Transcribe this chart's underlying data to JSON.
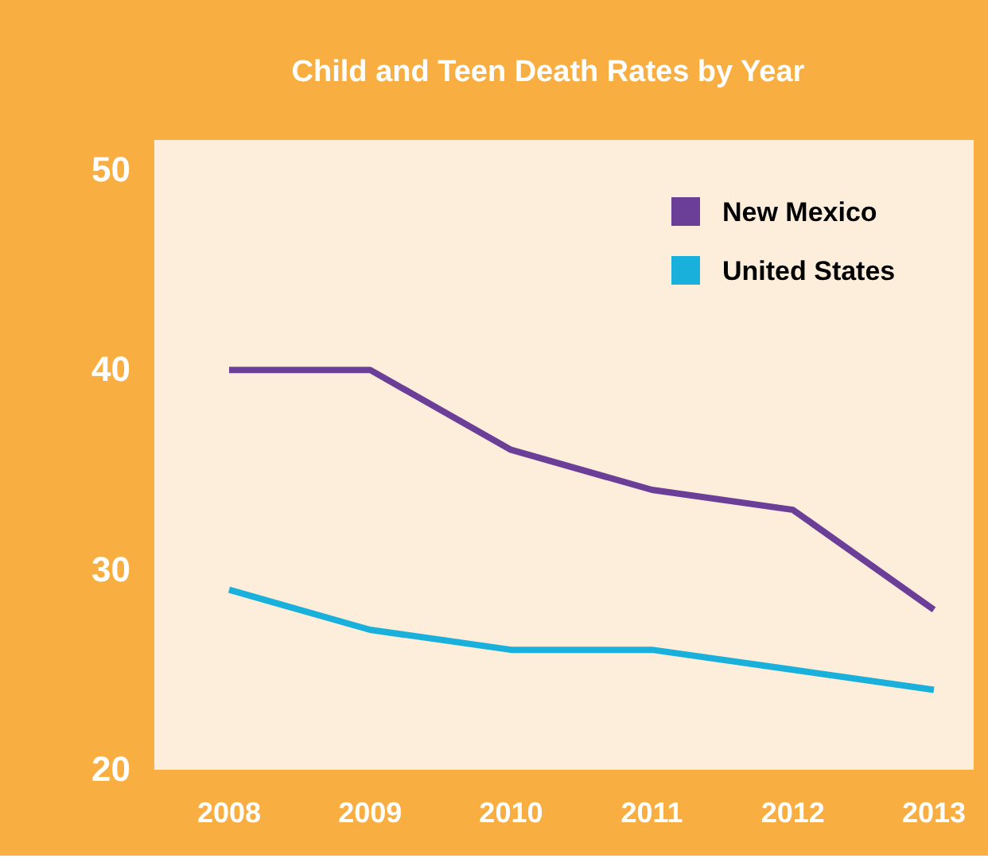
{
  "chart_data": {
    "type": "line",
    "title": "Child and Teen Death Rates by Year",
    "categories": [
      "2008",
      "2009",
      "2010",
      "2011",
      "2012",
      "2013"
    ],
    "series": [
      {
        "name": "New Mexico",
        "color": "#6b3f98",
        "values": [
          40,
          40,
          36,
          34,
          33,
          28
        ]
      },
      {
        "name": "United States",
        "color": "#1ab0dc",
        "values": [
          29,
          27,
          26,
          26,
          25,
          24
        ]
      }
    ],
    "ylim": [
      20,
      51.5
    ],
    "yticks": [
      20,
      30,
      40,
      50
    ],
    "grid": false,
    "legend": "top right",
    "marker": "none",
    "line_style": "solid"
  }
}
